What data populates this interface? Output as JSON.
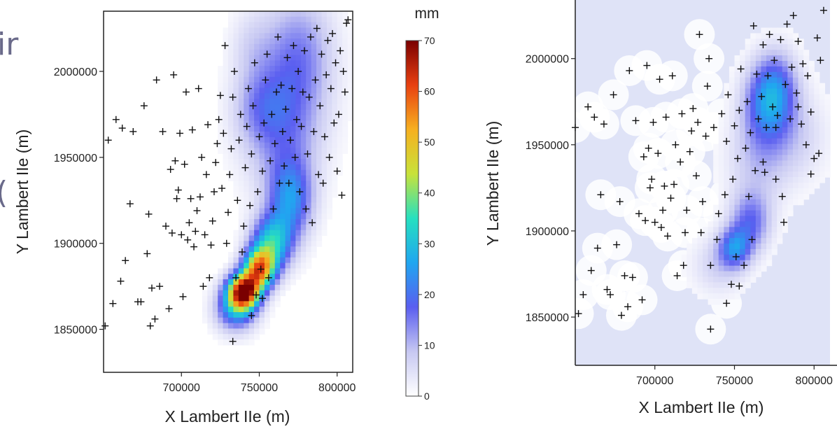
{
  "cut_text": {
    "left_top": "ir",
    "left_mid": "("
  },
  "colorbar": {
    "unit": "mm",
    "range": [
      0,
      70
    ],
    "ticks": [
      0,
      10,
      20,
      30,
      40,
      50,
      60,
      70
    ],
    "colors": [
      "#ffffff",
      "#c7c8f2",
      "#5a5ef0",
      "#20a6f0",
      "#26e0c0",
      "#c8e23a",
      "#f6b020",
      "#e84010",
      "#7a0000"
    ]
  },
  "chart_data": [
    {
      "type": "heatmap",
      "xlabel": "X Lambert IIe (m)",
      "ylabel": "Y Lambert IIe (m)",
      "xticks": [
        700000,
        750000,
        800000
      ],
      "yticks": [
        1850000,
        1900000,
        1950000,
        2000000
      ],
      "xlim": [
        650000,
        810000
      ],
      "ylim": [
        1825000,
        2035000
      ],
      "stations": [
        [
          651000,
          1852000
        ],
        [
          653000,
          1960000
        ],
        [
          656000,
          1865000
        ],
        [
          658000,
          1972000
        ],
        [
          661000,
          1878000
        ],
        [
          662000,
          1967000
        ],
        [
          664000,
          1890000
        ],
        [
          667000,
          1923000
        ],
        [
          669000,
          1965000
        ],
        [
          672000,
          1866000
        ],
        [
          674000,
          1866000
        ],
        [
          676000,
          1980000
        ],
        [
          678000,
          1894000
        ],
        [
          679000,
          1917000
        ],
        [
          680000,
          1852000
        ],
        [
          681000,
          1874000
        ],
        [
          683000,
          1856000
        ],
        [
          684000,
          1995000
        ],
        [
          686000,
          1875000
        ],
        [
          688000,
          1965000
        ],
        [
          690000,
          1910000
        ],
        [
          692000,
          1862000
        ],
        [
          693000,
          1943000
        ],
        [
          694000,
          1906000
        ],
        [
          695000,
          1998000
        ],
        [
          696000,
          1948000
        ],
        [
          697000,
          1926000
        ],
        [
          698000,
          1931000
        ],
        [
          699000,
          1964000
        ],
        [
          700000,
          1905000
        ],
        [
          701000,
          1869000
        ],
        [
          702000,
          1946000
        ],
        [
          703000,
          1988000
        ],
        [
          704000,
          1902000
        ],
        [
          705000,
          1912000
        ],
        [
          706000,
          1926000
        ],
        [
          707000,
          1966000
        ],
        [
          708000,
          1898000
        ],
        [
          709000,
          1907000
        ],
        [
          710000,
          1919000
        ],
        [
          711000,
          1990000
        ],
        [
          712000,
          1927000
        ],
        [
          713000,
          1950000
        ],
        [
          714000,
          1875000
        ],
        [
          715000,
          1905000
        ],
        [
          716000,
          1940000
        ],
        [
          717000,
          1969000
        ],
        [
          718000,
          1880000
        ],
        [
          719000,
          1899000
        ],
        [
          720000,
          1913000
        ],
        [
          721000,
          1930000
        ],
        [
          722000,
          1947000
        ],
        [
          723000,
          1958000
        ],
        [
          724000,
          1972000
        ],
        [
          725000,
          1986000
        ],
        [
          726000,
          1932000
        ],
        [
          727000,
          1964000
        ],
        [
          728000,
          2015000
        ],
        [
          729000,
          1900000
        ],
        [
          730000,
          1918000
        ],
        [
          731000,
          1940000
        ],
        [
          732000,
          1955000
        ],
        [
          733000,
          1985000
        ],
        [
          734000,
          2000000
        ],
        [
          735000,
          1880000
        ],
        [
          736000,
          1925000
        ],
        [
          737000,
          1960000
        ],
        [
          738000,
          1975000
        ],
        [
          739000,
          1895000
        ],
        [
          740000,
          1910000
        ],
        [
          741000,
          1944000
        ],
        [
          742000,
          1968000
        ],
        [
          743000,
          1990000
        ],
        [
          744000,
          1922000
        ],
        [
          745000,
          1952000
        ],
        [
          746000,
          1980000
        ],
        [
          747000,
          2005000
        ],
        [
          748000,
          1870000
        ],
        [
          749000,
          1930000
        ],
        [
          750000,
          1962000
        ],
        [
          751000,
          1885000
        ],
        [
          752000,
          1942000
        ],
        [
          753000,
          1970000
        ],
        [
          754000,
          1995000
        ],
        [
          755000,
          2010000
        ],
        [
          756000,
          1880000
        ],
        [
          757000,
          1948000
        ],
        [
          758000,
          1975000
        ],
        [
          759000,
          1920000
        ],
        [
          760000,
          1958000
        ],
        [
          761000,
          1988000
        ],
        [
          762000,
          2020000
        ],
        [
          763000,
          1935000
        ],
        [
          764000,
          1992000
        ],
        [
          765000,
          1965000
        ],
        [
          766000,
          1945000
        ],
        [
          767000,
          1978000
        ],
        [
          768000,
          2008000
        ],
        [
          769000,
          1935000
        ],
        [
          770000,
          1960000
        ],
        [
          771000,
          1990000
        ],
        [
          772000,
          2015000
        ],
        [
          773000,
          1950000
        ],
        [
          774000,
          1972000
        ],
        [
          775000,
          2000000
        ],
        [
          776000,
          1930000
        ],
        [
          777000,
          1968000
        ],
        [
          778000,
          1988000
        ],
        [
          779000,
          2012000
        ],
        [
          780000,
          1920000
        ],
        [
          781000,
          1952000
        ],
        [
          782000,
          1985000
        ],
        [
          783000,
          2020000
        ],
        [
          784000,
          1912000
        ],
        [
          785000,
          1965000
        ],
        [
          786000,
          1995000
        ],
        [
          787000,
          2025000
        ],
        [
          788000,
          1940000
        ],
        [
          789000,
          1980000
        ],
        [
          790000,
          2010000
        ],
        [
          791000,
          1935000
        ],
        [
          792000,
          1962000
        ],
        [
          793000,
          1998000
        ],
        [
          794000,
          2018000
        ],
        [
          795000,
          1950000
        ],
        [
          796000,
          1990000
        ],
        [
          797000,
          2022000
        ],
        [
          798000,
          1970000
        ],
        [
          799000,
          2005000
        ],
        [
          800000,
          1942000
        ],
        [
          801000,
          1975000
        ],
        [
          802000,
          2012000
        ],
        [
          803000,
          1928000
        ],
        [
          804000,
          2000000
        ],
        [
          805000,
          1988000
        ],
        [
          806000,
          2028000
        ],
        [
          807000,
          2030000
        ],
        [
          733000,
          1843000
        ],
        [
          745000,
          1858000
        ],
        [
          752000,
          1868000
        ]
      ],
      "intensity": [
        {
          "x": 740000,
          "y": 1872000,
          "sx": 7000,
          "sy": 7000,
          "v": 65
        },
        {
          "x": 750000,
          "y": 1885000,
          "sx": 7000,
          "sy": 8000,
          "v": 52
        },
        {
          "x": 758000,
          "y": 1900000,
          "sx": 9000,
          "sy": 11000,
          "v": 30
        },
        {
          "x": 770000,
          "y": 1925000,
          "sx": 10000,
          "sy": 16000,
          "v": 22
        },
        {
          "x": 735000,
          "y": 1862000,
          "sx": 9000,
          "sy": 9000,
          "v": 25
        },
        {
          "x": 765000,
          "y": 1965000,
          "sx": 18000,
          "sy": 25000,
          "v": 13
        },
        {
          "x": 775000,
          "y": 2010000,
          "sx": 16000,
          "sy": 25000,
          "v": 14
        },
        {
          "x": 750000,
          "y": 1980000,
          "sx": 12000,
          "sy": 15000,
          "v": 8
        },
        {
          "x": 745000,
          "y": 2015000,
          "sx": 10000,
          "sy": 15000,
          "v": 5
        }
      ]
    },
    {
      "type": "heatmap",
      "xlabel": "X Lambert IIe (m)",
      "ylabel": "Y Lambert IIe (m)",
      "xticks": [
        700000,
        750000,
        800000
      ],
      "yticks": [
        1850000,
        1900000,
        1950000,
        2000000
      ],
      "xlim": [
        650000,
        810000
      ],
      "ylim": [
        1822000,
        2034000
      ],
      "stations": [
        [
          650000,
          1960000
        ],
        [
          652000,
          1852000
        ],
        [
          655000,
          1863000
        ],
        [
          658000,
          1972000
        ],
        [
          660000,
          1877000
        ],
        [
          662000,
          1966000
        ],
        [
          664000,
          1890000
        ],
        [
          666000,
          1921000
        ],
        [
          668000,
          1962000
        ],
        [
          670000,
          1866000
        ],
        [
          672000,
          1863000
        ],
        [
          674000,
          1979000
        ],
        [
          676000,
          1892000
        ],
        [
          678000,
          1917000
        ],
        [
          679000,
          1851000
        ],
        [
          681000,
          1874000
        ],
        [
          683000,
          1856000
        ],
        [
          684000,
          1993000
        ],
        [
          686000,
          1873000
        ],
        [
          688000,
          1964000
        ],
        [
          690000,
          1910000
        ],
        [
          692000,
          1860000
        ],
        [
          693000,
          1943000
        ],
        [
          694000,
          1906000
        ],
        [
          695000,
          1996000
        ],
        [
          696000,
          1948000
        ],
        [
          697000,
          1925000
        ],
        [
          698000,
          1930000
        ],
        [
          699000,
          1963000
        ],
        [
          700000,
          1905000
        ],
        [
          702000,
          1945000
        ],
        [
          703000,
          1988000
        ],
        [
          704000,
          1902000
        ],
        [
          705000,
          1912000
        ],
        [
          706000,
          1926000
        ],
        [
          707000,
          1966000
        ],
        [
          708000,
          1897000
        ],
        [
          710000,
          1919000
        ],
        [
          711000,
          1990000
        ],
        [
          712000,
          1927000
        ],
        [
          713000,
          1950000
        ],
        [
          714000,
          1874000
        ],
        [
          716000,
          1940000
        ],
        [
          717000,
          1968000
        ],
        [
          718000,
          1880000
        ],
        [
          719000,
          1899000
        ],
        [
          720000,
          1912000
        ],
        [
          722000,
          1946000
        ],
        [
          723000,
          1958000
        ],
        [
          724000,
          1971000
        ],
        [
          726000,
          1932000
        ],
        [
          727000,
          1963000
        ],
        [
          728000,
          2014000
        ],
        [
          729000,
          1899000
        ],
        [
          730000,
          1917000
        ],
        [
          732000,
          1955000
        ],
        [
          733000,
          1984000
        ],
        [
          734000,
          2000000
        ],
        [
          735000,
          1880000
        ],
        [
          737000,
          1960000
        ],
        [
          739000,
          1895000
        ],
        [
          740000,
          1910000
        ],
        [
          742000,
          1968000
        ],
        [
          744000,
          1921000
        ],
        [
          745000,
          1952000
        ],
        [
          746000,
          1979000
        ],
        [
          748000,
          1869000
        ],
        [
          749000,
          1930000
        ],
        [
          750000,
          1961000
        ],
        [
          751000,
          1885000
        ],
        [
          752000,
          1942000
        ],
        [
          753000,
          1970000
        ],
        [
          754000,
          1994000
        ],
        [
          756000,
          1880000
        ],
        [
          757000,
          1948000
        ],
        [
          758000,
          1975000
        ],
        [
          759000,
          1920000
        ],
        [
          760000,
          1957000
        ],
        [
          762000,
          2019000
        ],
        [
          763000,
          1935000
        ],
        [
          764000,
          1991000
        ],
        [
          765000,
          1965000
        ],
        [
          767000,
          1978000
        ],
        [
          768000,
          2008000
        ],
        [
          769000,
          1934000
        ],
        [
          770000,
          1960000
        ],
        [
          771000,
          1990000
        ],
        [
          772000,
          2014000
        ],
        [
          774000,
          1972000
        ],
        [
          775000,
          1999000
        ],
        [
          776000,
          1930000
        ],
        [
          777000,
          1967000
        ],
        [
          779000,
          2011000
        ],
        [
          780000,
          1920000
        ],
        [
          782000,
          1985000
        ],
        [
          783000,
          2020000
        ],
        [
          785000,
          1965000
        ],
        [
          786000,
          1995000
        ],
        [
          787000,
          2025000
        ],
        [
          789000,
          1980000
        ],
        [
          790000,
          2010000
        ],
        [
          792000,
          1962000
        ],
        [
          793000,
          1997000
        ],
        [
          795000,
          1950000
        ],
        [
          796000,
          1990000
        ],
        [
          798000,
          1969000
        ],
        [
          800000,
          1942000
        ],
        [
          802000,
          2012000
        ],
        [
          804000,
          1999000
        ],
        [
          806000,
          2028000
        ],
        [
          735000,
          1843000
        ],
        [
          745000,
          1858000
        ],
        [
          753000,
          1868000
        ],
        [
          761000,
          1895000
        ],
        [
          768000,
          1940000
        ],
        [
          776000,
          1960000
        ],
        [
          781000,
          1905000
        ],
        [
          790000,
          1972000
        ],
        [
          798000,
          1933000
        ],
        [
          803000,
          1945000
        ]
      ],
      "intensity": [
        {
          "x": 750000,
          "y": 1890000,
          "sx": 7000,
          "sy": 8000,
          "v": 19
        },
        {
          "x": 760000,
          "y": 1905000,
          "sx": 9000,
          "sy": 12000,
          "v": 16
        },
        {
          "x": 770000,
          "y": 1972000,
          "sx": 11000,
          "sy": 16000,
          "v": 17
        },
        {
          "x": 776000,
          "y": 1985000,
          "sx": 10000,
          "sy": 15000,
          "v": 14
        },
        {
          "x": 765000,
          "y": 1940000,
          "sx": 14000,
          "sy": 18000,
          "v": 8
        },
        {
          "x": 740000,
          "y": 1880000,
          "sx": 12000,
          "sy": 12000,
          "v": 7
        },
        {
          "x": 790000,
          "y": 1955000,
          "sx": 14000,
          "sy": 18000,
          "v": 6
        }
      ]
    }
  ]
}
